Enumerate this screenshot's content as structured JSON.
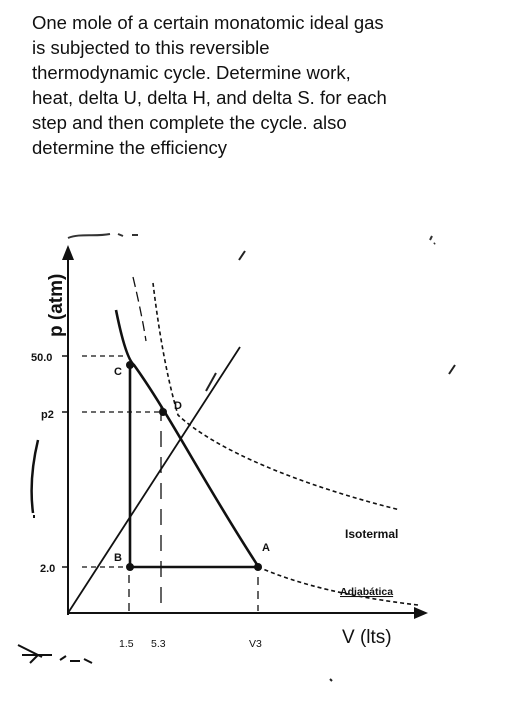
{
  "question": {
    "lines": [
      "One mole of a certain monatomic ideal gas",
      "is subjected to this reversible",
      "thermodynamic cycle. Determine work,",
      "heat, delta U, delta H, and delta S. for each",
      "step and then complete the cycle. also",
      "determine the efficiency"
    ]
  },
  "figure": {
    "y_axis_label": "p (atm)",
    "x_axis_label": "V (lts)",
    "y_ticks": [
      "50.0",
      "p2",
      "2.0"
    ],
    "x_ticks": [
      "1.5",
      "5.3",
      "V3"
    ],
    "points": [
      "C",
      "D",
      "B",
      "A"
    ],
    "curve_labels": [
      "Isotermal",
      "Adiabática"
    ],
    "colors": {
      "ink": "#111111",
      "background": "#ffffff"
    }
  }
}
